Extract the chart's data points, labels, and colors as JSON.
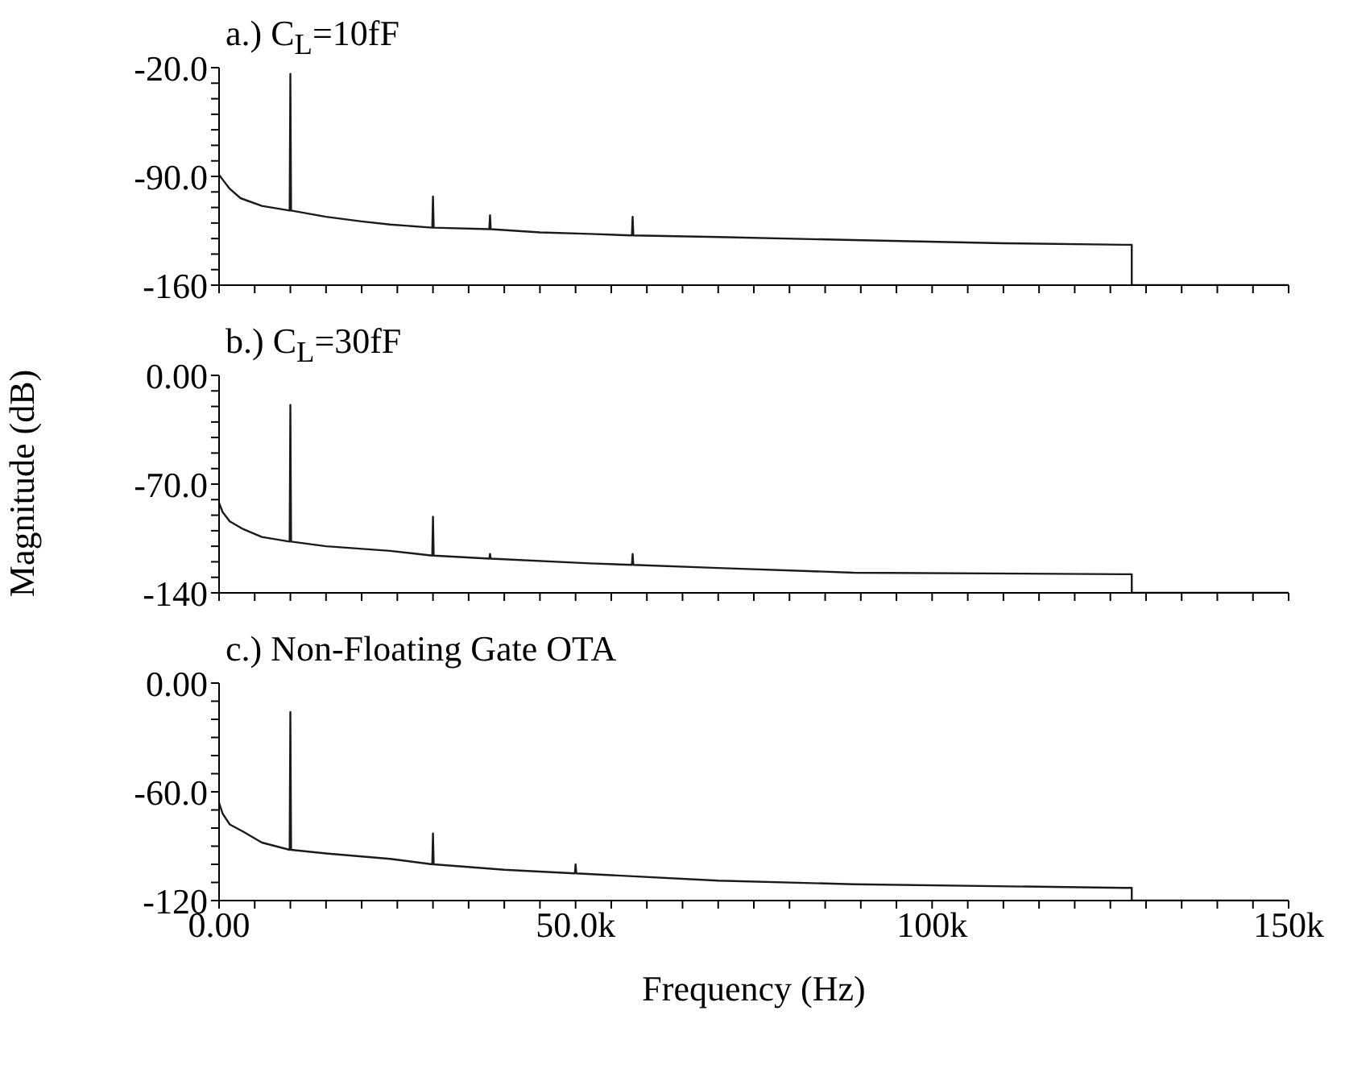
{
  "chart_data": [
    {
      "type": "line",
      "title": "a.) C$_{L}$=10fF",
      "x": [
        0,
        500,
        1500,
        3000,
        6000,
        9900,
        10000,
        10100,
        15000,
        20000,
        24000,
        29900,
        30000,
        30100,
        37900,
        38000,
        38100,
        45000,
        52000,
        57900,
        58000,
        58100,
        70000,
        89000,
        110000,
        127000,
        128000,
        128000,
        150000
      ],
      "series": [
        {
          "color": "#1a1a1a",
          "values": [
            -89,
            -92,
            -98,
            -104,
            -109,
            -112,
            -24,
            -112,
            -116,
            -119,
            -121,
            -123,
            -103,
            -123,
            -124,
            -115,
            -124,
            -126,
            -127,
            -128,
            -116,
            -128,
            -129,
            -131,
            -133,
            -134,
            -134,
            -160,
            -160
          ]
        }
      ],
      "xlim": [
        0,
        150000
      ],
      "xticks": [
        {
          "value": 0,
          "label": null
        },
        {
          "value": 5000,
          "label": null
        },
        {
          "value": 10000,
          "label": null
        },
        {
          "value": 15000,
          "label": null
        },
        {
          "value": 20000,
          "label": null
        },
        {
          "value": 25000,
          "label": null
        },
        {
          "value": 30000,
          "label": null
        },
        {
          "value": 35000,
          "label": null
        },
        {
          "value": 40000,
          "label": null
        },
        {
          "value": 45000,
          "label": null
        },
        {
          "value": 50000,
          "label": null
        },
        {
          "value": 55000,
          "label": null
        },
        {
          "value": 60000,
          "label": null
        },
        {
          "value": 65000,
          "label": null
        },
        {
          "value": 70000,
          "label": null
        },
        {
          "value": 75000,
          "label": null
        },
        {
          "value": 80000,
          "label": null
        },
        {
          "value": 85000,
          "label": null
        },
        {
          "value": 90000,
          "label": null
        },
        {
          "value": 95000,
          "label": null
        },
        {
          "value": 100000,
          "label": null
        },
        {
          "value": 105000,
          "label": null
        },
        {
          "value": 110000,
          "label": null
        },
        {
          "value": 115000,
          "label": null
        },
        {
          "value": 120000,
          "label": null
        },
        {
          "value": 125000,
          "label": null
        },
        {
          "value": 130000,
          "label": null
        },
        {
          "value": 135000,
          "label": null
        },
        {
          "value": 140000,
          "label": null
        },
        {
          "value": 145000,
          "label": null
        },
        {
          "value": 150000,
          "label": null
        }
      ],
      "ylim": [
        -160,
        -20
      ],
      "yticks": [
        {
          "value": -20,
          "label": "-20.0"
        },
        {
          "value": -30,
          "label": null
        },
        {
          "value": -40,
          "label": null
        },
        {
          "value": -50,
          "label": null
        },
        {
          "value": -60,
          "label": null
        },
        {
          "value": -70,
          "label": null
        },
        {
          "value": -80,
          "label": null
        },
        {
          "value": -90,
          "label": "-90.0"
        },
        {
          "value": -100,
          "label": null
        },
        {
          "value": -110,
          "label": null
        },
        {
          "value": -120,
          "label": null
        },
        {
          "value": -130,
          "label": null
        },
        {
          "value": -140,
          "label": null
        },
        {
          "value": -150,
          "label": null
        },
        {
          "value": -160,
          "label": "-160"
        }
      ],
      "tick_labels": "y",
      "marker": "none",
      "line_style": "solid",
      "grid": false
    },
    {
      "type": "line",
      "title": "b.) C$_{L}$=30fF",
      "ylabel": "Magnitude (dB)",
      "x": [
        0,
        500,
        1500,
        3400,
        6000,
        9900,
        10000,
        10100,
        15000,
        24000,
        29900,
        30000,
        30100,
        37900,
        38000,
        38100,
        52000,
        57900,
        58000,
        58100,
        70000,
        89000,
        127000,
        128000,
        128000,
        150000
      ],
      "series": [
        {
          "color": "#1a1a1a",
          "values": [
            -82,
            -88,
            -94,
            -99,
            -104,
            -107,
            -19,
            -107,
            -110,
            -113,
            -116,
            -91,
            -116,
            -118,
            -115,
            -118,
            -121,
            -122,
            -115,
            -122,
            -124,
            -127,
            -128,
            -128,
            -140,
            -140
          ]
        }
      ],
      "xlim": [
        0,
        150000
      ],
      "xticks": [
        {
          "value": 0,
          "label": null
        },
        {
          "value": 5000,
          "label": null
        },
        {
          "value": 10000,
          "label": null
        },
        {
          "value": 15000,
          "label": null
        },
        {
          "value": 20000,
          "label": null
        },
        {
          "value": 25000,
          "label": null
        },
        {
          "value": 30000,
          "label": null
        },
        {
          "value": 35000,
          "label": null
        },
        {
          "value": 40000,
          "label": null
        },
        {
          "value": 45000,
          "label": null
        },
        {
          "value": 50000,
          "label": null
        },
        {
          "value": 55000,
          "label": null
        },
        {
          "value": 60000,
          "label": null
        },
        {
          "value": 65000,
          "label": null
        },
        {
          "value": 70000,
          "label": null
        },
        {
          "value": 75000,
          "label": null
        },
        {
          "value": 80000,
          "label": null
        },
        {
          "value": 85000,
          "label": null
        },
        {
          "value": 90000,
          "label": null
        },
        {
          "value": 95000,
          "label": null
        },
        {
          "value": 100000,
          "label": null
        },
        {
          "value": 105000,
          "label": null
        },
        {
          "value": 110000,
          "label": null
        },
        {
          "value": 115000,
          "label": null
        },
        {
          "value": 120000,
          "label": null
        },
        {
          "value": 125000,
          "label": null
        },
        {
          "value": 130000,
          "label": null
        },
        {
          "value": 135000,
          "label": null
        },
        {
          "value": 140000,
          "label": null
        },
        {
          "value": 145000,
          "label": null
        },
        {
          "value": 150000,
          "label": null
        }
      ],
      "ylim": [
        -140,
        0
      ],
      "yticks": [
        {
          "value": 0,
          "label": "0.00"
        },
        {
          "value": -10,
          "label": null
        },
        {
          "value": -20,
          "label": null
        },
        {
          "value": -30,
          "label": null
        },
        {
          "value": -40,
          "label": null
        },
        {
          "value": -50,
          "label": null
        },
        {
          "value": -60,
          "label": null
        },
        {
          "value": -70,
          "label": "-70.0"
        },
        {
          "value": -80,
          "label": null
        },
        {
          "value": -90,
          "label": null
        },
        {
          "value": -100,
          "label": null
        },
        {
          "value": -110,
          "label": null
        },
        {
          "value": -120,
          "label": null
        },
        {
          "value": -130,
          "label": null
        },
        {
          "value": -140,
          "label": "-140"
        }
      ],
      "tick_labels": "y",
      "marker": "none",
      "line_style": "solid",
      "grid": false
    },
    {
      "type": "line",
      "title": "c.) Non-Floating Gate OTA",
      "xlabel": "Frequency (Hz)",
      "x": [
        0,
        500,
        1500,
        3400,
        6000,
        9900,
        10000,
        10100,
        15000,
        24000,
        29900,
        30000,
        30100,
        40000,
        49900,
        50000,
        50100,
        70000,
        89000,
        127000,
        128000,
        128000,
        150000
      ],
      "series": [
        {
          "color": "#1a1a1a",
          "values": [
            -66,
            -72,
            -78,
            -82,
            -88,
            -92,
            -16,
            -92,
            -94,
            -97,
            -100,
            -83,
            -100,
            -103,
            -105,
            -100,
            -105,
            -109,
            -111,
            -113,
            -113,
            -120,
            -120
          ]
        }
      ],
      "xlim": [
        0,
        150000
      ],
      "xticks": [
        {
          "value": 0,
          "label": "0.00"
        },
        {
          "value": 5000,
          "label": null
        },
        {
          "value": 10000,
          "label": null
        },
        {
          "value": 15000,
          "label": null
        },
        {
          "value": 20000,
          "label": null
        },
        {
          "value": 25000,
          "label": null
        },
        {
          "value": 30000,
          "label": null
        },
        {
          "value": 35000,
          "label": null
        },
        {
          "value": 40000,
          "label": null
        },
        {
          "value": 45000,
          "label": null
        },
        {
          "value": 50000,
          "label": "50.0k"
        },
        {
          "value": 55000,
          "label": null
        },
        {
          "value": 60000,
          "label": null
        },
        {
          "value": 65000,
          "label": null
        },
        {
          "value": 70000,
          "label": null
        },
        {
          "value": 75000,
          "label": null
        },
        {
          "value": 80000,
          "label": null
        },
        {
          "value": 85000,
          "label": null
        },
        {
          "value": 90000,
          "label": null
        },
        {
          "value": 95000,
          "label": null
        },
        {
          "value": 100000,
          "label": "100k"
        },
        {
          "value": 105000,
          "label": null
        },
        {
          "value": 110000,
          "label": null
        },
        {
          "value": 115000,
          "label": null
        },
        {
          "value": 120000,
          "label": null
        },
        {
          "value": 125000,
          "label": null
        },
        {
          "value": 130000,
          "label": null
        },
        {
          "value": 135000,
          "label": null
        },
        {
          "value": 140000,
          "label": null
        },
        {
          "value": 145000,
          "label": null
        },
        {
          "value": 150000,
          "label": "150k"
        }
      ],
      "ylim": [
        -120,
        0
      ],
      "yticks": [
        {
          "value": 0,
          "label": "0.00"
        },
        {
          "value": -10,
          "label": null
        },
        {
          "value": -20,
          "label": null
        },
        {
          "value": -30,
          "label": null
        },
        {
          "value": -40,
          "label": null
        },
        {
          "value": -50,
          "label": null
        },
        {
          "value": -60,
          "label": "-60.0"
        },
        {
          "value": -70,
          "label": null
        },
        {
          "value": -80,
          "label": null
        },
        {
          "value": -90,
          "label": null
        },
        {
          "value": -100,
          "label": null
        },
        {
          "value": -110,
          "label": null
        },
        {
          "value": -120,
          "label": "-120"
        }
      ],
      "marker": "none",
      "line_style": "solid",
      "grid": false
    }
  ]
}
